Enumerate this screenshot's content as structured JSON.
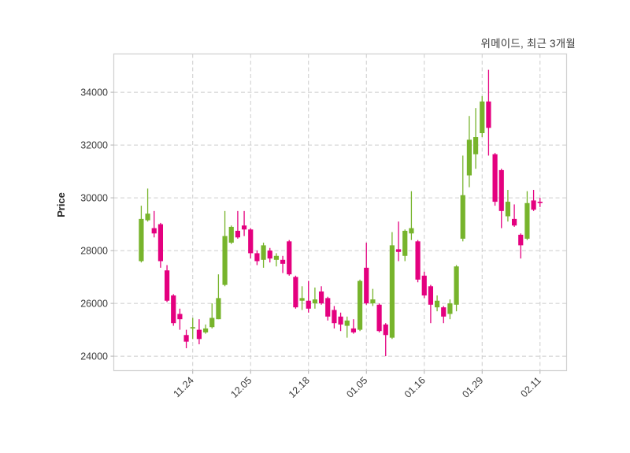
{
  "header": {
    "title": "위메이드, 최근 3개월"
  },
  "axes": {
    "y_label": "Price"
  },
  "chart_data": {
    "type": "candlestick",
    "title": "위메이드, 최근 3개월",
    "xlabel": "",
    "ylabel": "Price",
    "ylim": [
      23450,
      35450
    ],
    "y_ticks": [
      24000,
      26000,
      28000,
      30000,
      32000,
      34000
    ],
    "x_tick_labels": [
      "11.24",
      "12.05",
      "12.18",
      "01.05",
      "01.16",
      "01.29",
      "02.11"
    ],
    "x_tick_indices": [
      8,
      17,
      26,
      35,
      44,
      53,
      62
    ],
    "grid": true,
    "grid_style": "dashed",
    "legend": "none",
    "up_color": "#77b42c",
    "down_color": "#e4007f",
    "grid_color": "#cccccc",
    "frame_color": "#cfcfcf",
    "text_color": "#3a3a3a",
    "candle_format": [
      "open",
      "high",
      "low",
      "close"
    ],
    "candles": [
      [
        27600,
        29700,
        27550,
        29200
      ],
      [
        29150,
        30350,
        29100,
        29400
      ],
      [
        28850,
        29500,
        28500,
        28650
      ],
      [
        29000,
        29050,
        27350,
        27600
      ],
      [
        27250,
        27450,
        26050,
        26100
      ],
      [
        26300,
        26350,
        25150,
        25250
      ],
      [
        25600,
        25800,
        25000,
        25400
      ],
      [
        24800,
        25000,
        24300,
        24550
      ],
      [
        25050,
        25450,
        24650,
        25100
      ],
      [
        25000,
        25400,
        24450,
        24650
      ],
      [
        24900,
        25200,
        24850,
        25050
      ],
      [
        25100,
        26000,
        25050,
        25450
      ],
      [
        25400,
        27100,
        25400,
        26200
      ],
      [
        26700,
        29500,
        26650,
        28550
      ],
      [
        28300,
        28950,
        28250,
        28900
      ],
      [
        28750,
        29500,
        28450,
        28500
      ],
      [
        28950,
        29500,
        28550,
        28800
      ],
      [
        28800,
        28850,
        27700,
        27900
      ],
      [
        27900,
        28000,
        27450,
        27600
      ],
      [
        27650,
        28300,
        27350,
        28200
      ],
      [
        28000,
        28100,
        27550,
        27700
      ],
      [
        27650,
        27900,
        27400,
        27800
      ],
      [
        27650,
        27800,
        27150,
        27500
      ],
      [
        28350,
        28400,
        27050,
        27100
      ],
      [
        27000,
        27050,
        25800,
        25850
      ],
      [
        26100,
        26650,
        25750,
        26200
      ],
      [
        26100,
        26850,
        25650,
        25800
      ],
      [
        26000,
        26600,
        25800,
        26150
      ],
      [
        26450,
        26650,
        25950,
        26000
      ],
      [
        26200,
        26250,
        25350,
        25500
      ],
      [
        25750,
        25900,
        25050,
        25250
      ],
      [
        25500,
        25650,
        24950,
        25200
      ],
      [
        25150,
        25500,
        24700,
        25350
      ],
      [
        25050,
        25400,
        24850,
        24900
      ],
      [
        25000,
        26900,
        24950,
        26850
      ],
      [
        27350,
        28300,
        25950,
        26000
      ],
      [
        26000,
        26550,
        25900,
        26150
      ],
      [
        25950,
        26000,
        24900,
        24950
      ],
      [
        25200,
        25250,
        24000,
        24800
      ],
      [
        24700,
        28700,
        24650,
        28200
      ],
      [
        28050,
        29100,
        27600,
        27950
      ],
      [
        27800,
        28800,
        27600,
        28750
      ],
      [
        28650,
        30250,
        28400,
        28850
      ],
      [
        28350,
        28400,
        26800,
        26900
      ],
      [
        27050,
        27200,
        26200,
        26300
      ],
      [
        26650,
        26700,
        25250,
        25950
      ],
      [
        25850,
        26300,
        25700,
        26100
      ],
      [
        25850,
        25900,
        25250,
        25500
      ],
      [
        25600,
        26150,
        25400,
        26000
      ],
      [
        25950,
        27450,
        25700,
        27400
      ],
      [
        28450,
        31600,
        28350,
        30100
      ],
      [
        30850,
        33100,
        30400,
        32200
      ],
      [
        31650,
        33400,
        31100,
        32300
      ],
      [
        32450,
        33850,
        32300,
        33650
      ],
      [
        33650,
        34850,
        31600,
        32650
      ],
      [
        31650,
        31700,
        29700,
        29850
      ],
      [
        31050,
        31100,
        28850,
        29500
      ],
      [
        29300,
        30300,
        29100,
        29850
      ],
      [
        29200,
        29750,
        28900,
        28950
      ],
      [
        28600,
        28650,
        27700,
        28200
      ],
      [
        28450,
        30250,
        28400,
        29800
      ],
      [
        29900,
        30300,
        29500,
        29550
      ],
      [
        29850,
        30000,
        29650,
        29800
      ]
    ]
  }
}
